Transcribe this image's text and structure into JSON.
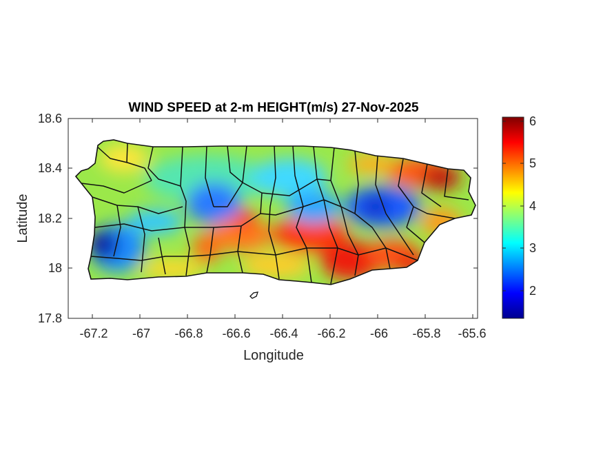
{
  "title": "WIND SPEED at 2-m HEIGHT(m/s) 27-Nov-2025",
  "xlabel": "Longitude",
  "ylabel": "Latitude",
  "x_ticks": [
    "-67.2",
    "-67",
    "-66.8",
    "-66.6",
    "-66.4",
    "-66.2",
    "-66",
    "-65.8",
    "-65.6"
  ],
  "y_ticks": [
    "18.6",
    "18.4",
    "18.2",
    "18",
    "17.8"
  ],
  "colorbar": {
    "colormap": "jet",
    "range": [
      1.35,
      6.1
    ],
    "ticks": [
      "6",
      "5",
      "4",
      "3",
      "2"
    ]
  },
  "map_data": {
    "region": "Puerto Rico",
    "variable": "wind speed at 2-m height",
    "units": "m/s",
    "date": "27-Nov-2025",
    "xlim": [
      -67.3,
      -65.57
    ],
    "ylim": [
      17.8,
      18.6
    ],
    "features": [
      {
        "description": "minimum wind speed (~1.5 m/s)",
        "lon": -67.12,
        "lat": 18.1
      },
      {
        "description": "low wind (~2.2 m/s)",
        "lon": -66.72,
        "lat": 18.25
      },
      {
        "description": "low wind (~2.0 m/s)",
        "lon": -66.0,
        "lat": 18.24
      },
      {
        "description": "maximum wind speed (~6 m/s)",
        "lon": -65.72,
        "lat": 18.39
      },
      {
        "description": "high wind (~5.8 m/s)",
        "lon": -66.13,
        "lat": 18.0
      },
      {
        "description": "high wind (~5.5 m/s)",
        "lon": -66.3,
        "lat": 18.12
      }
    ]
  },
  "colors": {
    "axis": "#262626",
    "border": "#111111"
  }
}
